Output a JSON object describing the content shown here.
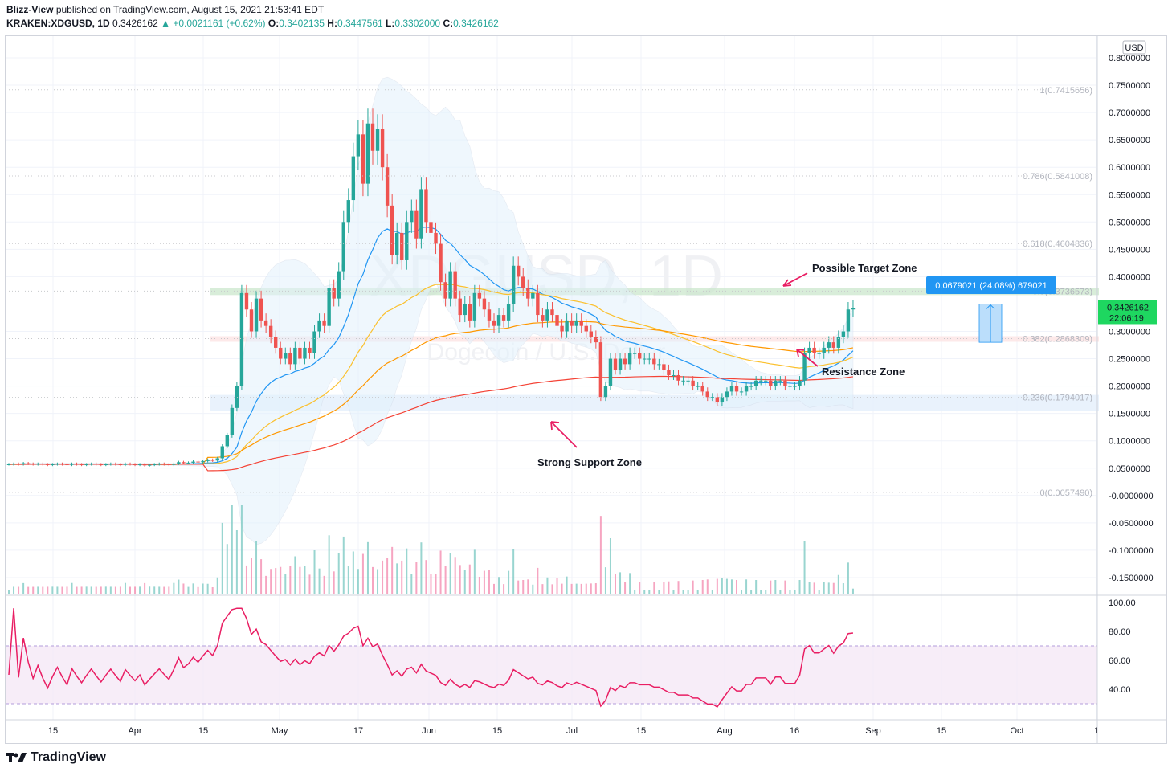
{
  "header": {
    "publisher": "Blizz-View",
    "published_text": "published on TradingView.com, August 15, 2021 21:53:41 EDT",
    "symbol": "KRAKEN:XDGUSD, 1D",
    "last": "0.3426162",
    "change": "▲ +0.0021161 (+0.62%)",
    "o_label": "O:",
    "o": "0.3402135",
    "h_label": "H:",
    "h": "0.3447561",
    "l_label": "L:",
    "l": "0.3302000",
    "c_label": "C:",
    "c": "0.3426162"
  },
  "currency_button": "USD",
  "watermark": {
    "main": "XDGUSD, 1D",
    "sub": "Dogecoin / U.S. Dollar"
  },
  "footer_brand": "TradingView",
  "colors": {
    "up": "#26a69a",
    "down": "#ef5350",
    "fib_green": "#4caf50",
    "ema_orange": "#ff9800",
    "ema_red": "#f44336",
    "ema_yellow": "#fbc02d",
    "bb_fill": "#e3f2fd",
    "rsi": "#e91e63",
    "blue": "#2196f3"
  },
  "chart_data": [
    {
      "type": "candlestick",
      "symbol": "KRAKEN:XDGUSD",
      "interval": "1D",
      "y_ticks": [
        "0.8000000",
        "0.7500000",
        "0.7000000",
        "0.6500000",
        "0.6000000",
        "0.5500000",
        "0.5000000",
        "0.4500000",
        "0.4000000",
        "0.3500000",
        "0.3000000",
        "0.2500000",
        "0.2000000",
        "0.1500000",
        "0.1000000",
        "0.0500000",
        "-0.0000000",
        "-0.0500000",
        "-0.1000000",
        "-0.1500000"
      ],
      "ylim": [
        -0.17,
        0.82
      ],
      "x_ticks": [
        "15",
        "Apr",
        "15",
        "May",
        "17",
        "Jun",
        "15",
        "Jul",
        "15",
        "Aug",
        "16",
        "Sep",
        "15",
        "Oct",
        "1"
      ],
      "fib_levels": [
        {
          "label": "1(0.7415656)",
          "value": 0.7415656
        },
        {
          "label": "0.786(0.5841008)",
          "value": 0.5841008
        },
        {
          "label": "0.618(0.4604836)",
          "value": 0.4604836
        },
        {
          "label": "0.5(0.3736573)",
          "value": 0.3736573
        },
        {
          "label": "0.382(0.2868309)",
          "value": 0.2868309
        },
        {
          "label": "0.236(0.1794017)",
          "value": 0.1794017
        },
        {
          "label": "0(0.0057490)",
          "value": 0.005749
        }
      ],
      "last_price_label": "0.3426162",
      "countdown": "22:06:19",
      "measure_label": "0.0679021 (24.08%) 679021",
      "annotations": [
        "Possible Target Zone",
        "Resistance Zone",
        "Strong Support Zone"
      ],
      "closes": [
        0.057,
        0.058,
        0.057,
        0.059,
        0.058,
        0.057,
        0.058,
        0.057,
        0.056,
        0.057,
        0.058,
        0.057,
        0.056,
        0.058,
        0.057,
        0.056,
        0.057,
        0.058,
        0.057,
        0.056,
        0.057,
        0.058,
        0.057,
        0.056,
        0.058,
        0.057,
        0.056,
        0.057,
        0.055,
        0.056,
        0.057,
        0.058,
        0.057,
        0.056,
        0.058,
        0.061,
        0.059,
        0.06,
        0.062,
        0.061,
        0.063,
        0.065,
        0.064,
        0.068,
        0.09,
        0.11,
        0.16,
        0.2,
        0.37,
        0.34,
        0.3,
        0.36,
        0.32,
        0.31,
        0.29,
        0.27,
        0.25,
        0.26,
        0.24,
        0.27,
        0.25,
        0.27,
        0.26,
        0.3,
        0.32,
        0.31,
        0.38,
        0.36,
        0.41,
        0.5,
        0.54,
        0.62,
        0.66,
        0.57,
        0.68,
        0.63,
        0.67,
        0.6,
        0.53,
        0.44,
        0.48,
        0.43,
        0.5,
        0.52,
        0.47,
        0.56,
        0.5,
        0.48,
        0.46,
        0.39,
        0.36,
        0.41,
        0.36,
        0.33,
        0.35,
        0.32,
        0.37,
        0.36,
        0.34,
        0.32,
        0.31,
        0.33,
        0.32,
        0.35,
        0.42,
        0.4,
        0.38,
        0.36,
        0.37,
        0.33,
        0.32,
        0.34,
        0.33,
        0.31,
        0.3,
        0.32,
        0.31,
        0.32,
        0.31,
        0.3,
        0.29,
        0.28,
        0.18,
        0.2,
        0.25,
        0.23,
        0.25,
        0.24,
        0.26,
        0.26,
        0.25,
        0.25,
        0.25,
        0.24,
        0.24,
        0.23,
        0.22,
        0.22,
        0.21,
        0.21,
        0.21,
        0.2,
        0.2,
        0.19,
        0.18,
        0.18,
        0.17,
        0.18,
        0.19,
        0.2,
        0.19,
        0.19,
        0.2,
        0.2,
        0.21,
        0.21,
        0.21,
        0.2,
        0.21,
        0.21,
        0.2,
        0.2,
        0.2,
        0.21,
        0.26,
        0.27,
        0.26,
        0.26,
        0.27,
        0.28,
        0.27,
        0.29,
        0.3,
        0.34,
        0.343
      ],
      "rsi": {
        "levels": [
          "100.00",
          "80.00",
          "60.00",
          "40.00"
        ],
        "upper_band": 70,
        "lower_band": 30
      }
    }
  ]
}
